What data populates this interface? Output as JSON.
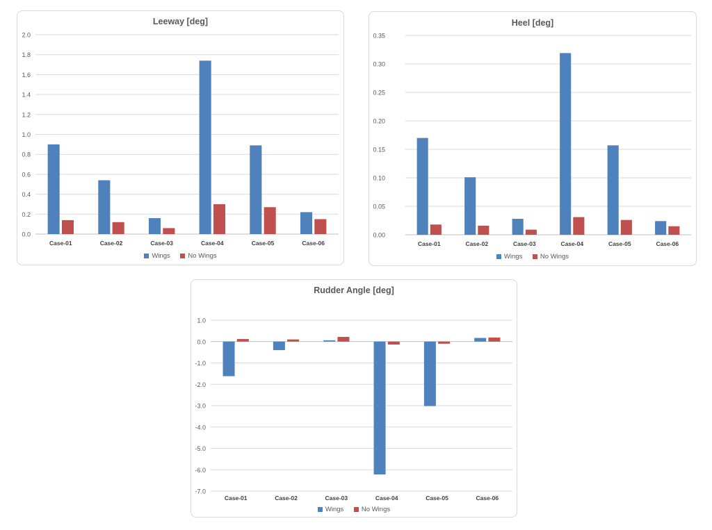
{
  "chart_data": [
    {
      "type": "bar",
      "title": "Leeway [deg]",
      "categories": [
        "Case-01",
        "Case-02",
        "Case-03",
        "Case-04",
        "Case-05",
        "Case-06"
      ],
      "series": [
        {
          "name": "Wings",
          "color": "#4f81bd",
          "values": [
            0.9,
            0.54,
            0.16,
            1.74,
            0.89,
            0.22
          ]
        },
        {
          "name": "No Wings",
          "color": "#c0504d",
          "values": [
            0.14,
            0.12,
            0.06,
            0.3,
            0.27,
            0.15
          ]
        }
      ],
      "ylim": [
        0.0,
        2.0
      ],
      "yticks": [
        "0.0",
        "0.2",
        "0.4",
        "0.6",
        "0.8",
        "1.0",
        "1.2",
        "1.4",
        "1.6",
        "1.8",
        "2.0"
      ],
      "xlabel": "",
      "ylabel": "",
      "grid": true,
      "legend": "bottom"
    },
    {
      "type": "bar",
      "title": "Heel [deg]",
      "categories": [
        "Case-01",
        "Case-02",
        "Case-03",
        "Case-04",
        "Case-05",
        "Case-06"
      ],
      "series": [
        {
          "name": "Wings",
          "color": "#4f81bd",
          "values": [
            0.17,
            0.101,
            0.028,
            0.319,
            0.157,
            0.024
          ]
        },
        {
          "name": "No Wings",
          "color": "#c0504d",
          "values": [
            0.018,
            0.016,
            0.009,
            0.031,
            0.026,
            0.015
          ]
        }
      ],
      "ylim": [
        0.0,
        0.35
      ],
      "yticks": [
        "0.00",
        "0.05",
        "0.10",
        "0.15",
        "0.20",
        "0.25",
        "0.30",
        "0.35"
      ],
      "xlabel": "",
      "ylabel": "",
      "grid": true,
      "legend": "bottom"
    },
    {
      "type": "bar",
      "title": "Rudder Angle [deg]",
      "categories": [
        "Case-01",
        "Case-02",
        "Case-03",
        "Case-04",
        "Case-05",
        "Case-06"
      ],
      "series": [
        {
          "name": "Wings",
          "color": "#4f81bd",
          "values": [
            -1.62,
            -0.4,
            0.06,
            -6.22,
            -3.02,
            0.17
          ]
        },
        {
          "name": "No Wings",
          "color": "#c0504d",
          "values": [
            0.12,
            0.1,
            0.22,
            -0.14,
            -0.1,
            0.19
          ]
        }
      ],
      "ylim": [
        -7.0,
        1.0
      ],
      "yticks": [
        "-7.0",
        "-6.0",
        "-5.0",
        "-4.0",
        "-3.0",
        "-2.0",
        "-1.0",
        "0.0",
        "1.0"
      ],
      "xlabel": "",
      "ylabel": "",
      "grid": true,
      "legend": "bottom"
    }
  ]
}
